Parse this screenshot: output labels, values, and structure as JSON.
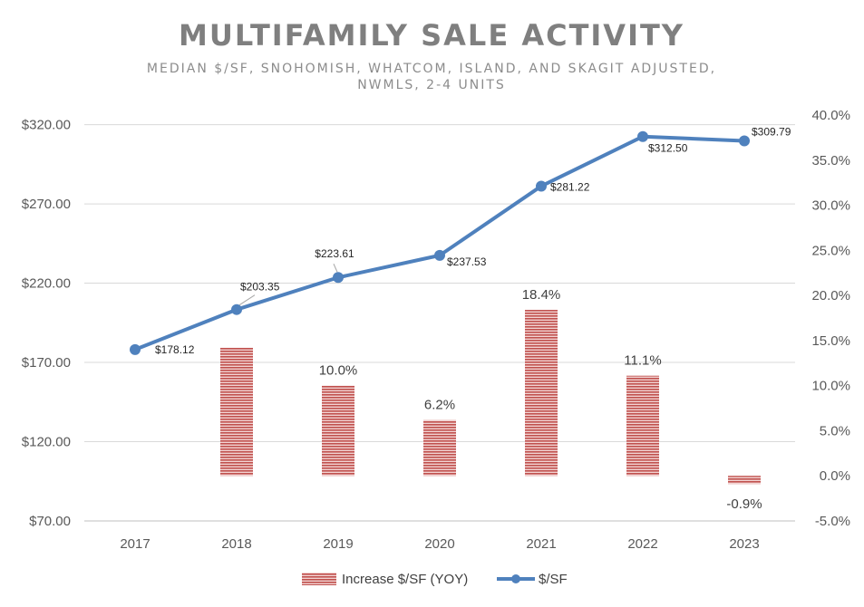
{
  "chart_data": {
    "type": "bar+line",
    "title": "MULTIFAMILY SALE ACTIVITY",
    "subtitle_lines": [
      "MEDIAN $/SF, SNOHOMISH, WHATCOM, ISLAND, AND SKAGIT ADJUSTED,",
      "NWMLS, 2-4 UNITS"
    ],
    "categories": [
      "2017",
      "2018",
      "2019",
      "2020",
      "2021",
      "2022",
      "2023"
    ],
    "series": [
      {
        "name": "Increase $/SF (YOY)",
        "type": "bar",
        "axis": "right",
        "values": [
          null,
          14.2,
          10.0,
          6.2,
          18.4,
          11.1,
          -0.9
        ],
        "labels": [
          "",
          "",
          "10.0%",
          "6.2%",
          "18.4%",
          "11.1%",
          "-0.9%"
        ],
        "color": "#c0504d"
      },
      {
        "name": "$/SF",
        "type": "line",
        "axis": "left",
        "values": [
          178.12,
          203.35,
          223.61,
          237.53,
          281.22,
          312.5,
          309.79
        ],
        "labels": [
          "$178.12",
          "$203.35",
          "$223.61",
          "$237.53",
          "$281.22",
          "$312.50",
          "$309.79"
        ],
        "color": "#4f81bd"
      }
    ],
    "y_left": {
      "min": 70,
      "max": 320,
      "step": 50,
      "tick_labels": [
        "$70.00",
        "$120.00",
        "$170.00",
        "$220.00",
        "$270.00",
        "$320.00"
      ]
    },
    "y_right": {
      "min": -5,
      "max": 40,
      "step": 5,
      "tick_labels": [
        "-5.0%",
        "0.0%",
        "5.0%",
        "10.0%",
        "15.0%",
        "20.0%",
        "25.0%",
        "30.0%",
        "35.0%",
        "40.0%"
      ]
    },
    "grid": true,
    "legend_position": "bottom"
  }
}
